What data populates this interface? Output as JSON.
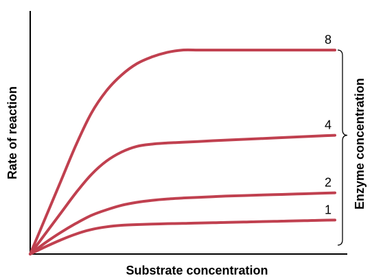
{
  "chart_data": {
    "type": "line",
    "xlabel": "Substrate concentration",
    "ylabel": "Rate of reaction",
    "bracket_label": "Enzyme concentration",
    "xlim": [
      0,
      10
    ],
    "ylim": [
      0,
      10
    ],
    "grid": false,
    "line_color": "#c0404f",
    "series": [
      {
        "name": "8",
        "x": [
          0,
          0.5,
          1,
          1.5,
          2,
          2.5,
          3,
          3.5,
          4,
          4.5,
          5,
          5.5,
          6,
          6.5,
          7,
          7.5,
          8,
          8.5,
          9,
          9.5,
          10
        ],
        "y": [
          0,
          1.6,
          3.2,
          4.8,
          6.2,
          7.2,
          7.9,
          8.4,
          8.7,
          8.9,
          9.0,
          9.0,
          9.0,
          9.0,
          9.0,
          9.0,
          9.0,
          9.0,
          9.0,
          9.0,
          9.0
        ]
      },
      {
        "name": "4",
        "x": [
          0,
          0.5,
          1,
          1.5,
          2,
          2.5,
          3,
          3.5,
          4,
          4.5,
          5,
          5.5,
          6,
          6.5,
          7,
          7.5,
          8,
          8.5,
          9,
          9.5,
          10
        ],
        "y": [
          0,
          0.9,
          1.8,
          2.7,
          3.5,
          4.1,
          4.5,
          4.75,
          4.85,
          4.9,
          4.93,
          4.96,
          5.0,
          5.03,
          5.06,
          5.09,
          5.12,
          5.15,
          5.18,
          5.21,
          5.24
        ]
      },
      {
        "name": "2",
        "x": [
          0,
          0.5,
          1,
          1.5,
          2,
          2.5,
          3,
          3.5,
          4,
          4.5,
          5,
          5.5,
          6,
          6.5,
          7,
          7.5,
          8,
          8.5,
          9,
          9.5,
          10
        ],
        "y": [
          0,
          0.5,
          0.95,
          1.35,
          1.7,
          1.95,
          2.15,
          2.28,
          2.37,
          2.43,
          2.47,
          2.5,
          2.53,
          2.56,
          2.58,
          2.6,
          2.62,
          2.64,
          2.66,
          2.68,
          2.7
        ]
      },
      {
        "name": "1",
        "x": [
          0,
          0.5,
          1,
          1.5,
          2,
          2.5,
          3,
          3.5,
          4,
          4.5,
          5,
          5.5,
          6,
          6.5,
          7,
          7.5,
          8,
          8.5,
          9,
          9.5,
          10
        ],
        "y": [
          0,
          0.32,
          0.62,
          0.88,
          1.08,
          1.2,
          1.27,
          1.3,
          1.32,
          1.34,
          1.35,
          1.37,
          1.38,
          1.4,
          1.41,
          1.43,
          1.44,
          1.46,
          1.47,
          1.49,
          1.5
        ]
      }
    ]
  }
}
